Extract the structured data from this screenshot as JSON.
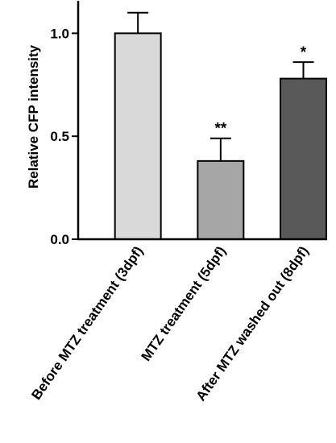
{
  "chart_data": {
    "type": "bar",
    "categories": [
      "Before MTZ treatment (3dpf)",
      "MTZ treatment (5dpf)",
      "After MTZ washed out (8dpf)"
    ],
    "values": [
      1.0,
      0.38,
      0.78
    ],
    "error_upper": [
      0.1,
      0.11,
      0.08
    ],
    "annotations": [
      "",
      "**",
      "*"
    ],
    "bar_colors": [
      "#d9d9d9",
      "#a6a6a6",
      "#595959"
    ],
    "ylabel": "Relative CFP intensity",
    "yticks": [
      0.0,
      0.5,
      1.0
    ],
    "ytick_labels": [
      "0.0",
      "0.5",
      "1.0"
    ],
    "ylim": [
      0,
      1.15
    ],
    "grid": false
  }
}
